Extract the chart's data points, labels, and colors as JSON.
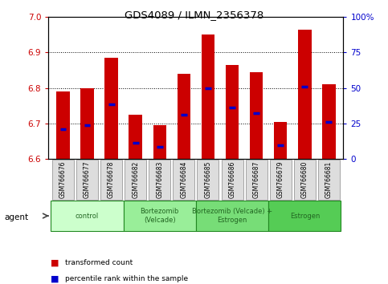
{
  "title": "GDS4089 / ILMN_2356378",
  "samples": [
    "GSM766676",
    "GSM766677",
    "GSM766678",
    "GSM766682",
    "GSM766683",
    "GSM766684",
    "GSM766685",
    "GSM766686",
    "GSM766687",
    "GSM766679",
    "GSM766680",
    "GSM766681"
  ],
  "bar_values": [
    6.79,
    6.8,
    6.885,
    6.725,
    6.695,
    6.84,
    6.95,
    6.865,
    6.845,
    6.705,
    6.965,
    6.81
  ],
  "percentile_values": [
    6.685,
    6.695,
    6.755,
    6.645,
    6.635,
    6.725,
    6.8,
    6.745,
    6.73,
    6.64,
    6.805,
    6.705
  ],
  "ymin": 6.6,
  "ymax": 7.0,
  "yticks": [
    6.6,
    6.7,
    6.8,
    6.9,
    7.0
  ],
  "y2ticks": [
    0,
    25,
    50,
    75,
    100
  ],
  "y2labels": [
    "0",
    "25",
    "50",
    "75",
    "100%"
  ],
  "bar_color": "#cc0000",
  "percentile_color": "#0000cc",
  "grid_color": "#000000",
  "groups": [
    {
      "label": "control",
      "start": 0,
      "end": 3,
      "color": "#ccffcc"
    },
    {
      "label": "Bortezomib\n(Velcade)",
      "start": 3,
      "end": 6,
      "color": "#99ee99"
    },
    {
      "label": "Bortezomib (Velcade) +\nEstrogen",
      "start": 6,
      "end": 9,
      "color": "#77dd77"
    },
    {
      "label": "Estrogen",
      "start": 9,
      "end": 12,
      "color": "#55cc55"
    }
  ],
  "legend_items": [
    {
      "color": "#cc0000",
      "label": "transformed count"
    },
    {
      "color": "#0000cc",
      "label": "percentile rank within the sample"
    }
  ],
  "agent_label": "agent",
  "tick_color_left": "#cc0000",
  "tick_color_right": "#0000cc",
  "label_box_color": "#dddddd",
  "label_box_edge": "#888888"
}
